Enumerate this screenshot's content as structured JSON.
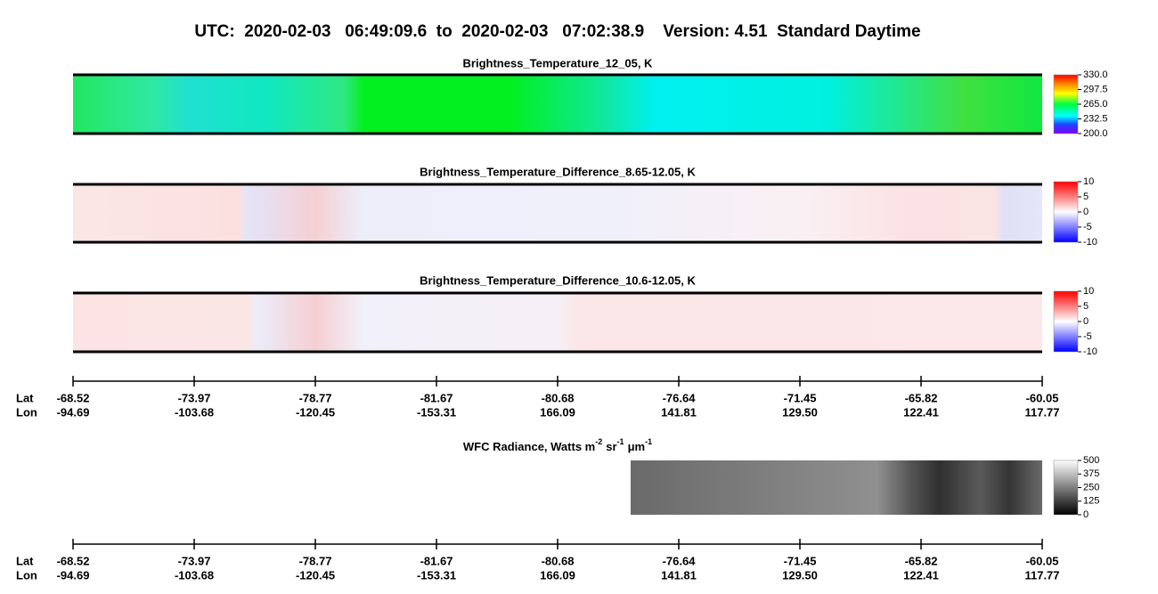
{
  "title": "UTC:  2020-02-03   06:49:09.6  to  2020-02-03   07:02:38.9    Version: 4.51  Standard Daytime",
  "panels": [
    {
      "title": "Brightness_Temperature_12_05, K",
      "clim": [
        200,
        330
      ],
      "ticks": [
        {
          "value": 330,
          "label": "330.0"
        },
        {
          "value": 297.5,
          "label": "297.5"
        },
        {
          "value": 265,
          "label": "265.0"
        },
        {
          "value": 232.5,
          "label": "232.5"
        },
        {
          "value": 200,
          "label": "200.0"
        }
      ]
    },
    {
      "title": "Brightness_Temperature_Difference_8.65-12.05, K",
      "clim": [
        -10,
        10
      ],
      "ticks": [
        10,
        5,
        0,
        -5,
        -10
      ]
    },
    {
      "title": "Brightness_Temperature_Difference_10.6-12.05, K",
      "clim": [
        -10,
        10
      ],
      "ticks": [
        10,
        5,
        0,
        -5,
        -10
      ]
    },
    {
      "title_parts": [
        "WFC Radiance, Watts m",
        "-2",
        "sr",
        "-1",
        "μm",
        "-1"
      ],
      "clim": [
        0,
        500
      ],
      "ticks": [
        500,
        375,
        250,
        125,
        0
      ]
    }
  ],
  "axes": [
    {
      "row_labels": [
        "Lat",
        "Lon"
      ],
      "lat": [
        "-68.52",
        "-73.97",
        "-78.77",
        "-81.67",
        "-80.68",
        "-76.64",
        "-71.45",
        "-65.82",
        "-60.05"
      ],
      "lon": [
        "-94.69",
        "-103.68",
        "-120.45",
        "-153.31",
        "166.09",
        "141.81",
        "129.50",
        "122.41",
        "117.77"
      ]
    },
    {
      "row_labels": [
        "Lat",
        "Lon"
      ],
      "lat": [
        "-68.52",
        "-73.97",
        "-78.77",
        "-81.67",
        "-80.68",
        "-76.64",
        "-71.45",
        "-65.82",
        "-60.05"
      ],
      "lon": [
        "-94.69",
        "-103.68",
        "-120.45",
        "-153.31",
        "166.09",
        "141.81",
        "129.50",
        "122.41",
        "117.77"
      ]
    }
  ]
}
